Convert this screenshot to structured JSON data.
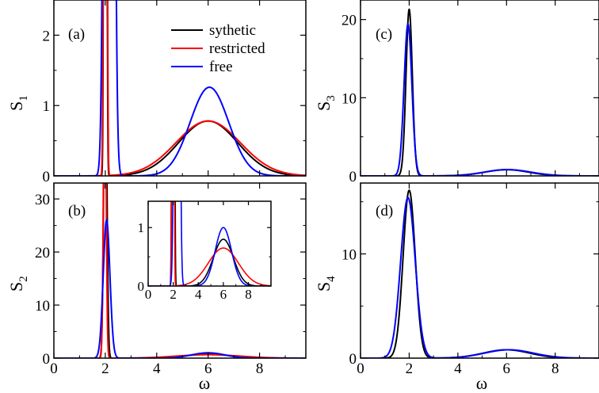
{
  "chart_data": [
    {
      "id": "a",
      "type": "line",
      "panel_label": "(a)",
      "xlabel": "",
      "ylabel_main": "S",
      "ylabel_sub": "1",
      "xlim": [
        0,
        9.8
      ],
      "ylim": [
        0,
        2.5
      ],
      "xticks": [
        0,
        2,
        4,
        6,
        8
      ],
      "yticks": [
        0,
        1,
        2
      ],
      "xtick_labels_visible": false,
      "legend": {
        "placement": "top-center",
        "entries": [
          "sythetic",
          "restricted",
          "free"
        ]
      },
      "series": [
        {
          "name": "sythetic",
          "color": "#000000",
          "peaks": [
            {
              "center": 2.0,
              "width": 0.035,
              "height": 40
            },
            {
              "center": 6.0,
              "width": 1.15,
              "height": 0.78
            }
          ]
        },
        {
          "name": "restricted",
          "color": "#ff0000",
          "peaks": [
            {
              "center": 2.0,
              "width": 0.04,
              "height": 40
            },
            {
              "center": 6.0,
              "width": 1.25,
              "height": 0.78
            }
          ]
        },
        {
          "name": "free",
          "color": "#0000ff",
          "peaks": [
            {
              "center": 2.15,
              "width": 0.12,
              "height": 40
            },
            {
              "center": 6.05,
              "width": 0.75,
              "height": 1.26
            }
          ]
        }
      ]
    },
    {
      "id": "b",
      "type": "line",
      "panel_label": "(b)",
      "xlabel": "ω",
      "ylabel_main": "S",
      "ylabel_sub": "2",
      "xlim": [
        0,
        9.8
      ],
      "ylim": [
        0,
        33
      ],
      "xticks": [
        0,
        2,
        4,
        6,
        8
      ],
      "yticks": [
        0,
        10,
        20,
        30
      ],
      "xtick_labels_visible": true,
      "series": [
        {
          "name": "sythetic",
          "color": "#000000",
          "peaks": [
            {
              "center": 2.0,
              "width": 0.06,
              "height": 60
            },
            {
              "center": 6.0,
              "width": 0.8,
              "height": 0.8
            }
          ]
        },
        {
          "name": "restricted",
          "color": "#ff0000",
          "peaks": [
            {
              "center": 1.98,
              "width": 0.05,
              "height": 60
            },
            {
              "center": 6.0,
              "width": 1.2,
              "height": 0.65
            }
          ]
        },
        {
          "name": "free",
          "color": "#0000ff",
          "peaks": [
            {
              "center": 2.05,
              "width": 0.13,
              "height": 26
            },
            {
              "center": 6.0,
              "width": 0.65,
              "height": 1.0
            }
          ]
        }
      ],
      "inset": {
        "xlim": [
          0,
          9.8
        ],
        "ylim": [
          0,
          1.45
        ],
        "xticks": [
          0,
          2,
          4,
          6,
          8
        ],
        "yticks": [
          0,
          1
        ],
        "series": [
          {
            "name": "sythetic",
            "color": "#000000",
            "peaks": [
              {
                "center": 2.0,
                "width": 0.06,
                "height": 60
              },
              {
                "center": 6.0,
                "width": 0.8,
                "height": 0.8
              }
            ]
          },
          {
            "name": "restricted",
            "color": "#ff0000",
            "peaks": [
              {
                "center": 1.98,
                "width": 0.05,
                "height": 60
              },
              {
                "center": 6.0,
                "width": 1.2,
                "height": 0.65
              }
            ]
          },
          {
            "name": "free",
            "color": "#0000ff",
            "peaks": [
              {
                "center": 2.3,
                "width": 0.14,
                "height": 26
              },
              {
                "center": 6.0,
                "width": 0.65,
                "height": 1.0
              }
            ]
          }
        ]
      }
    },
    {
      "id": "c",
      "type": "line",
      "panel_label": "(c)",
      "xlabel": "",
      "ylabel_main": "S",
      "ylabel_sub": "3",
      "xlim": [
        0,
        9.8
      ],
      "ylim": [
        0,
        22.5
      ],
      "xticks": [
        0,
        2,
        4,
        6,
        8
      ],
      "yticks": [
        0,
        10,
        20
      ],
      "xtick_labels_visible": false,
      "series": [
        {
          "name": "sythetic",
          "color": "#000000",
          "peaks": [
            {
              "center": 2.0,
              "width": 0.13,
              "height": 21.3
            },
            {
              "center": 6.0,
              "width": 0.9,
              "height": 0.8
            }
          ]
        },
        {
          "name": "free",
          "color": "#0000ff",
          "peaks": [
            {
              "center": 1.95,
              "width": 0.16,
              "height": 19.4
            },
            {
              "center": 6.05,
              "width": 0.95,
              "height": 0.8
            }
          ]
        }
      ]
    },
    {
      "id": "d",
      "type": "line",
      "panel_label": "(d)",
      "xlabel": "ω",
      "ylabel_main": "S",
      "ylabel_sub": "4",
      "xlim": [
        0,
        9.8
      ],
      "ylim": [
        0,
        16.8
      ],
      "xticks": [
        0,
        2,
        4,
        6,
        8
      ],
      "yticks": [
        0,
        10
      ],
      "xtick_labels_visible": true,
      "series": [
        {
          "name": "sythetic",
          "color": "#000000",
          "peaks": [
            {
              "center": 2.0,
              "width": 0.25,
              "height": 16.1
            },
            {
              "center": 6.0,
              "width": 0.95,
              "height": 0.8
            }
          ]
        },
        {
          "name": "free",
          "color": "#0000ff",
          "peaks": [
            {
              "center": 1.95,
              "width": 0.3,
              "height": 15.4
            },
            {
              "center": 6.1,
              "width": 1.0,
              "height": 0.8
            }
          ]
        }
      ]
    }
  ]
}
